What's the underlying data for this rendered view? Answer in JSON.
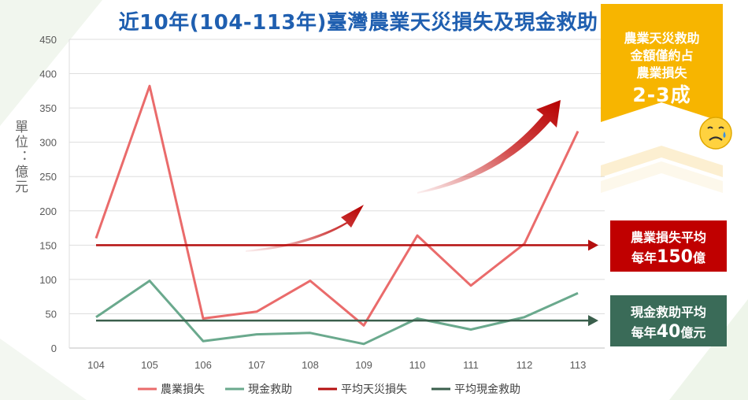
{
  "title": "近10年(104-113年)臺灣農業天災損失及現金救助",
  "unit_label": "單位：億元",
  "badge": {
    "lines": [
      "農業天災救助",
      "金額僅約占",
      "農業損失"
    ],
    "highlight": "2-3成",
    "icon": "sad-face-icon",
    "color": "#f7b500"
  },
  "loss_callout": {
    "line1": "農業損失平均",
    "prefix": "每年",
    "value": "150",
    "suffix": "億",
    "color": "#c00000"
  },
  "aid_callout": {
    "line1": "現金救助平均",
    "prefix": "每年",
    "value": "40",
    "suffix": "億元",
    "color": "#3a6b58"
  },
  "chart_data": {
    "type": "line",
    "categories": [
      "104",
      "105",
      "106",
      "107",
      "108",
      "109",
      "110",
      "111",
      "112",
      "113"
    ],
    "ylim": [
      0,
      450
    ],
    "yticks": [
      0,
      50,
      100,
      150,
      200,
      250,
      300,
      350,
      400,
      450
    ],
    "grid": true,
    "legend_position": "bottom",
    "series": [
      {
        "name": "農業損失",
        "color": "#ea6b6b",
        "values": [
          160,
          382,
          43,
          53,
          98,
          33,
          164,
          91,
          152,
          316
        ]
      },
      {
        "name": "現金救助",
        "color": "#6aa98d",
        "values": [
          45,
          98,
          10,
          20,
          22,
          6,
          43,
          27,
          45,
          80
        ]
      },
      {
        "name": "平均天災損失",
        "color": "#b50f0f",
        "values": [
          150,
          150,
          150,
          150,
          150,
          150,
          150,
          150,
          150,
          150
        ]
      },
      {
        "name": "平均現金救助",
        "color": "#3a5f4c",
        "values": [
          40,
          40,
          40,
          40,
          40,
          40,
          40,
          40,
          40,
          40
        ]
      }
    ]
  }
}
